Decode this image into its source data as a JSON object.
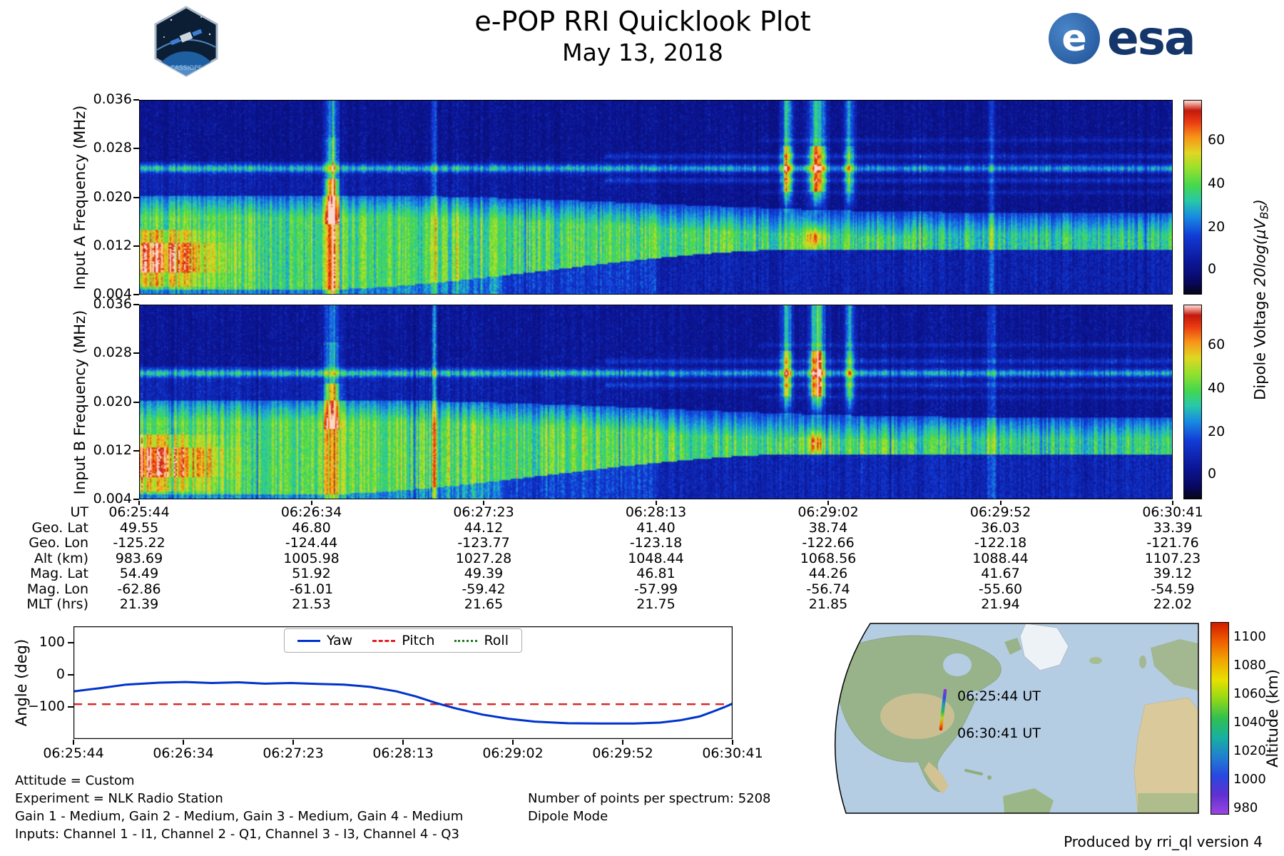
{
  "header": {
    "title": "e-POP RRI Quicklook Plot",
    "date": "May 13, 2018",
    "esa_word": "esa",
    "cassiope_text": "CASSIOPE"
  },
  "spectrograms": {
    "a_label": "Input A Frequency (MHz)",
    "b_label": "Input B Frequency (MHz)",
    "freq_ticks": [
      "0.036",
      "0.028",
      "0.020",
      "0.012",
      "0.004"
    ],
    "time_ticks": [
      "06:25:44",
      "06:26:34",
      "06:27:23",
      "06:28:13",
      "06:29:02",
      "06:29:52",
      "06:30:41"
    ]
  },
  "colorbar": {
    "ticks": [
      "60",
      "40",
      "20",
      "0"
    ],
    "label_prefix": "Dipole Voltage ",
    "label_math": "20log(μV",
    "label_sub": "BS",
    "label_close": ")"
  },
  "ephemeris": {
    "rows": [
      {
        "label": "UT",
        "values": [
          "06:25:44",
          "06:26:34",
          "06:27:23",
          "06:28:13",
          "06:29:02",
          "06:29:52",
          "06:30:41"
        ]
      },
      {
        "label": "Geo. Lat",
        "values": [
          "49.55",
          "46.80",
          "44.12",
          "41.40",
          "38.74",
          "36.03",
          "33.39"
        ]
      },
      {
        "label": "Geo. Lon",
        "values": [
          "-125.22",
          "-124.44",
          "-123.77",
          "-123.18",
          "-122.66",
          "-122.18",
          "-121.76"
        ]
      },
      {
        "label": "Alt (km)",
        "values": [
          "983.69",
          "1005.98",
          "1027.28",
          "1048.44",
          "1068.56",
          "1088.44",
          "1107.23"
        ]
      },
      {
        "label": "Mag. Lat",
        "values": [
          "54.49",
          "51.92",
          "49.39",
          "46.81",
          "44.26",
          "41.67",
          "39.12"
        ]
      },
      {
        "label": "Mag. Lon",
        "values": [
          "-62.86",
          "-61.01",
          "-59.42",
          "-57.99",
          "-56.74",
          "-55.60",
          "-54.59"
        ]
      },
      {
        "label": "MLT (hrs)",
        "values": [
          "21.39",
          "21.53",
          "21.65",
          "21.75",
          "21.85",
          "21.94",
          "22.02"
        ]
      }
    ]
  },
  "attitude": {
    "ylabel": "Angle (deg)",
    "yticks": [
      "100",
      "0",
      "−100"
    ],
    "ytick_values": [
      100,
      0,
      -100
    ],
    "legend": [
      {
        "label": "Yaw",
        "color": "#0033cc",
        "style": "solid"
      },
      {
        "label": "Pitch",
        "color": "#e02020",
        "style": "dashed"
      },
      {
        "label": "Roll",
        "color": "#1d7a1d",
        "style": "dotted"
      }
    ]
  },
  "map": {
    "label_start": "06:25:44 UT",
    "label_end": "06:30:41 UT"
  },
  "alt_colorbar": {
    "label": "Altitude (km)",
    "ticks": [
      "1100",
      "1080",
      "1060",
      "1040",
      "1020",
      "1000",
      "980"
    ]
  },
  "footer": {
    "line1": "Attitude = Custom",
    "line2": "Experiment = NLK Radio Station",
    "line3": "Gain 1 - Medium, Gain 2 - Medium, Gain 3 - Medium, Gain 4 - Medium",
    "line4": "Inputs: Channel 1 - I1, Channel 2 - Q1, Channel 3 - I3, Channel 4 - Q3",
    "points": "Number of points per spectrum: 5208",
    "mode": "Dipole Mode",
    "produced": "Produced by rri_ql version 4"
  },
  "chart_data": [
    {
      "type": "heatmap",
      "name": "input_a_spectrogram",
      "xlabel": "UT",
      "ylabel": "Input A Frequency (MHz)",
      "x_start": "06:25:44",
      "x_end": "06:30:41",
      "ylim_mhz": [
        0.004,
        0.036
      ],
      "yticks": [
        0.036,
        0.028,
        0.02,
        0.012,
        0.004
      ],
      "colorbar_label": "Dipole Voltage 20log(μV_BS)",
      "colorbar_ticks": [
        60,
        40,
        20,
        0
      ],
      "colorbar_range_approx": [
        -11,
        79
      ],
      "features": [
        "broadband hiss band from 0.004 to ~0.016 MHz at start; lower edge rises to ~0.011 MHz after 06:27:23",
        "intense burst near 06:26:38 spanning 0.004-0.036 MHz with red core near 0.018-0.022 MHz",
        "bright patch at far left (06:25:44) near 0.008-0.013 MHz",
        "persistent narrowband transmitter line near 0.0245 MHz across full pass",
        "weaker horizontal lines near 0.0225 and 0.0265 MHz in second half",
        "strong bursts 06:28:55-06:29:15 covering 0.017-0.036 MHz with red cores",
        "narrow vertical streak near 06:27:10 and faint streak near 06:29:50",
        "dark blue noisy background with vertical striping"
      ]
    },
    {
      "type": "heatmap",
      "name": "input_b_spectrogram",
      "xlabel": "UT",
      "ylabel": "Input B Frequency (MHz)",
      "x_start": "06:25:44",
      "x_end": "06:30:41",
      "ylim_mhz": [
        0.004,
        0.036
      ],
      "yticks": [
        0.036,
        0.028,
        0.02,
        0.012,
        0.004
      ],
      "colorbar_label": "Dipole Voltage 20log(μV_BS)",
      "colorbar_ticks": [
        60,
        40,
        20,
        0
      ],
      "colorbar_range_approx": [
        -11,
        79
      ],
      "features": [
        "nearly identical structure to Input A spectrogram, slightly brighter band emission"
      ]
    },
    {
      "type": "table",
      "name": "ephemeris_table",
      "rows": [
        {
          "label": "UT",
          "values": [
            "06:25:44",
            "06:26:34",
            "06:27:23",
            "06:28:13",
            "06:29:02",
            "06:29:52",
            "06:30:41"
          ]
        },
        {
          "label": "Geo. Lat",
          "values": [
            "49.55",
            "46.80",
            "44.12",
            "41.40",
            "38.74",
            "36.03",
            "33.39"
          ]
        },
        {
          "label": "Geo. Lon",
          "values": [
            "-125.22",
            "-124.44",
            "-123.77",
            "-123.18",
            "-122.66",
            "-122.18",
            "-121.76"
          ]
        },
        {
          "label": "Alt (km)",
          "values": [
            "983.69",
            "1005.98",
            "1027.28",
            "1048.44",
            "1068.56",
            "1088.44",
            "1107.23"
          ]
        },
        {
          "label": "Mag. Lat",
          "values": [
            "54.49",
            "51.92",
            "49.39",
            "46.81",
            "44.26",
            "41.67",
            "39.12"
          ]
        },
        {
          "label": "Mag. Lon",
          "values": [
            "-62.86",
            "-61.01",
            "-59.42",
            "-57.99",
            "-56.74",
            "-55.60",
            "-54.59"
          ]
        },
        {
          "label": "MLT (hrs)",
          "values": [
            "21.39",
            "21.53",
            "21.65",
            "21.75",
            "21.85",
            "21.94",
            "22.02"
          ]
        }
      ]
    },
    {
      "type": "line",
      "name": "attitude",
      "ylabel": "Angle (deg)",
      "ylim": [
        -200,
        150
      ],
      "yticks": [
        100,
        0,
        -100
      ],
      "x_ticks": [
        "06:25:44",
        "06:26:34",
        "06:27:23",
        "06:28:13",
        "06:29:02",
        "06:29:52",
        "06:30:41"
      ],
      "note": "x given as fraction of pass 06:25:44-06:30:41; Roll overlaps Yaw and is hidden beneath it",
      "series": [
        {
          "name": "Yaw",
          "color": "#0033cc",
          "style": "solid",
          "points": [
            [
              0,
              -52
            ],
            [
              0.04,
              -42
            ],
            [
              0.08,
              -31
            ],
            [
              0.13,
              -25
            ],
            [
              0.17,
              -23
            ],
            [
              0.21,
              -26
            ],
            [
              0.25,
              -24
            ],
            [
              0.29,
              -28
            ],
            [
              0.33,
              -26
            ],
            [
              0.37,
              -29
            ],
            [
              0.41,
              -31
            ],
            [
              0.45,
              -38
            ],
            [
              0.49,
              -52
            ],
            [
              0.52,
              -68
            ],
            [
              0.55,
              -88
            ],
            [
              0.58,
              -105
            ],
            [
              0.62,
              -124
            ],
            [
              0.66,
              -137
            ],
            [
              0.7,
              -146
            ],
            [
              0.75,
              -151
            ],
            [
              0.8,
              -152
            ],
            [
              0.85,
              -152
            ],
            [
              0.89,
              -149
            ],
            [
              0.92,
              -142
            ],
            [
              0.95,
              -130
            ],
            [
              0.97,
              -115
            ],
            [
              0.99,
              -99
            ],
            [
              1,
              -90
            ]
          ]
        },
        {
          "name": "Pitch",
          "color": "#e02020",
          "style": "dashed",
          "points": [
            [
              0,
              -92
            ],
            [
              1,
              -92
            ]
          ]
        },
        {
          "name": "Roll",
          "color": "#1d7a1d",
          "style": "dotted",
          "points": [
            [
              0,
              -52
            ],
            [
              0.04,
              -42
            ],
            [
              0.08,
              -31
            ],
            [
              0.13,
              -25
            ],
            [
              0.17,
              -23
            ],
            [
              0.21,
              -26
            ],
            [
              0.25,
              -24
            ],
            [
              0.29,
              -28
            ],
            [
              0.33,
              -26
            ],
            [
              0.37,
              -29
            ],
            [
              0.41,
              -31
            ],
            [
              0.45,
              -38
            ],
            [
              0.49,
              -52
            ],
            [
              0.52,
              -68
            ],
            [
              0.55,
              -88
            ],
            [
              0.58,
              -105
            ],
            [
              0.62,
              -124
            ],
            [
              0.66,
              -137
            ],
            [
              0.7,
              -146
            ],
            [
              0.75,
              -151
            ],
            [
              0.8,
              -152
            ],
            [
              0.85,
              -152
            ],
            [
              0.89,
              -149
            ],
            [
              0.92,
              -142
            ],
            [
              0.95,
              -130
            ],
            [
              0.97,
              -115
            ],
            [
              0.99,
              -99
            ],
            [
              1,
              -90
            ]
          ]
        }
      ]
    },
    {
      "type": "map",
      "name": "ground_track_map",
      "region": "North America and North Atlantic",
      "ground_track": {
        "start": {
          "ut": "06:25:44 UT",
          "lat": 49.55,
          "lon": -125.22,
          "alt_km": 983.69
        },
        "end": {
          "ut": "06:30:41 UT",
          "lat": 33.39,
          "lon": -121.76,
          "alt_km": 1107.23
        }
      },
      "colorbar": {
        "label": "Altitude (km)",
        "ticks": [
          1100,
          1080,
          1060,
          1040,
          1020,
          1000,
          980
        ]
      }
    }
  ]
}
